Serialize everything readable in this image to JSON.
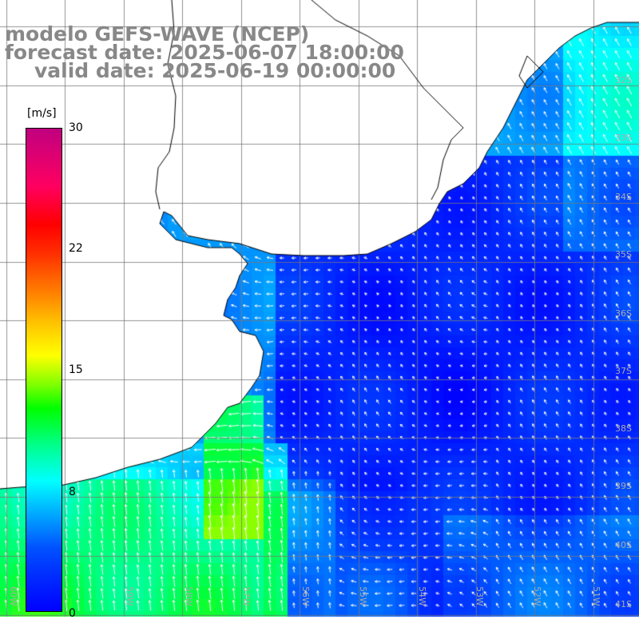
{
  "title": {
    "line1": "modelo GEFS-WAVE (NCEP)",
    "line2": "forecast date: 2025-06-07 18:00:00",
    "line3": "valid date: 2025-06-19 00:00:00"
  },
  "colorbar": {
    "unit": "[m/s]",
    "ticks": [
      "30",
      "22",
      "15",
      "8",
      "0"
    ],
    "tick_values": [
      30,
      22,
      15,
      8,
      0
    ],
    "range": [
      0,
      30
    ]
  },
  "map": {
    "lat_labels": [
      "32S",
      "33S",
      "34S",
      "35S",
      "36S",
      "37S",
      "38S",
      "39S",
      "40S",
      "41S"
    ],
    "lon_labels": [
      "60W",
      "59W",
      "58W",
      "57W",
      "56W",
      "55W",
      "54W",
      "53W",
      "52W",
      "51W"
    ],
    "lon_range": [
      -60.5,
      -50
    ],
    "lat_range": [
      -41.2,
      -31
    ],
    "land_color": "#ffffff",
    "coast_color": "#000000",
    "vector_color": "#ffffff",
    "grid_color": "#9a9a9a",
    "field_description_colors": {
      "low": "#0000ff",
      "mid": "#00ffff",
      "high": "#00ff00"
    }
  }
}
